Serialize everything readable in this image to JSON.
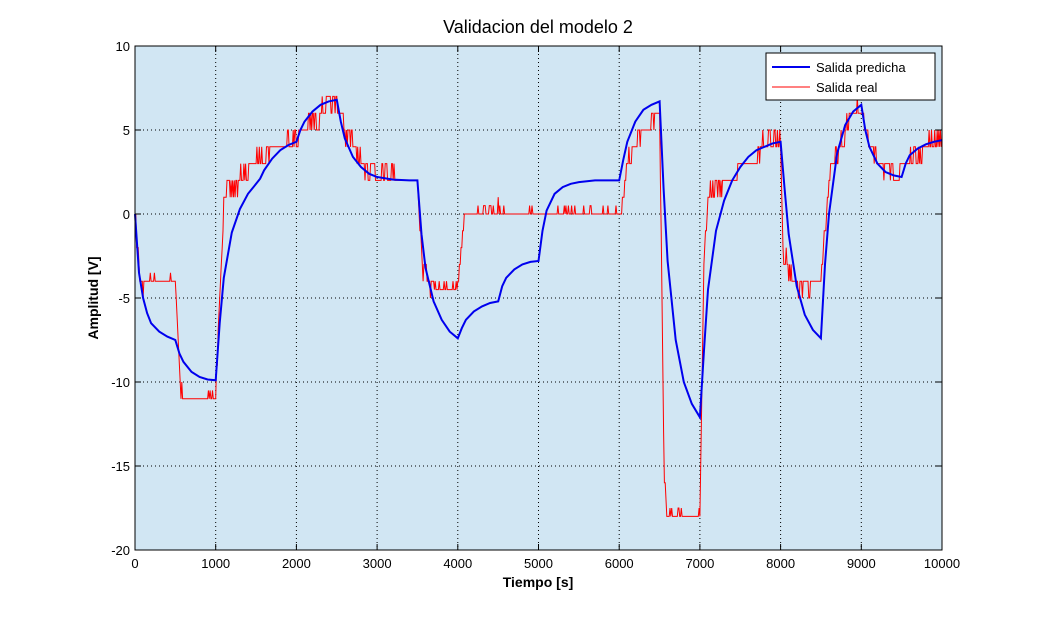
{
  "chart_data": {
    "type": "line",
    "title": "Validacion del modelo 2",
    "xlabel": "Tiempo [s]",
    "ylabel": "Amplitud [V]",
    "xlim": [
      0,
      10000
    ],
    "ylim": [
      -20,
      10
    ],
    "xticks": [
      0,
      1000,
      2000,
      3000,
      4000,
      5000,
      6000,
      7000,
      8000,
      9000,
      10000
    ],
    "yticks": [
      -20,
      -15,
      -10,
      -5,
      0,
      5,
      10
    ],
    "grid": true,
    "legend_position": "top-right",
    "plot_background": "#d1e6f3",
    "series": [
      {
        "name": "Salida predicha",
        "color": "#0000ee",
        "x": [
          0,
          50,
          100,
          150,
          200,
          300,
          400,
          500,
          550,
          600,
          700,
          800,
          900,
          1000,
          1050,
          1100,
          1200,
          1300,
          1400,
          1500,
          1550,
          1600,
          1700,
          1800,
          1900,
          2000,
          2050,
          2100,
          2200,
          2300,
          2400,
          2500,
          2550,
          2600,
          2700,
          2800,
          2900,
          3000,
          3200,
          3400,
          3500,
          3550,
          3600,
          3700,
          3800,
          3900,
          4000,
          4050,
          4100,
          4200,
          4300,
          4400,
          4500,
          4550,
          4600,
          4700,
          4800,
          4900,
          5000,
          5050,
          5100,
          5200,
          5300,
          5400,
          5500,
          5700,
          6000,
          6050,
          6100,
          6200,
          6300,
          6400,
          6500,
          6550,
          6600,
          6700,
          6800,
          6900,
          7000,
          7050,
          7100,
          7200,
          7300,
          7400,
          7500,
          7600,
          7700,
          7800,
          7900,
          8000,
          8050,
          8100,
          8200,
          8300,
          8400,
          8500,
          8550,
          8600,
          8700,
          8800,
          8900,
          9000,
          9050,
          9100,
          9200,
          9300,
          9400,
          9500,
          9550,
          9600,
          9700,
          9800,
          9900,
          10000
        ],
        "y": [
          0,
          -3.5,
          -5.0,
          -5.9,
          -6.5,
          -7.0,
          -7.3,
          -7.5,
          -8.3,
          -8.8,
          -9.4,
          -9.7,
          -9.85,
          -9.9,
          -6.5,
          -3.8,
          -1.1,
          0.3,
          1.2,
          1.8,
          2.1,
          2.6,
          3.3,
          3.8,
          4.1,
          4.3,
          5.0,
          5.5,
          6.1,
          6.5,
          6.7,
          6.8,
          5.5,
          4.5,
          3.4,
          2.8,
          2.4,
          2.2,
          2.05,
          2.0,
          2.0,
          -1.2,
          -3.2,
          -5.2,
          -6.3,
          -7.0,
          -7.4,
          -6.8,
          -6.3,
          -5.8,
          -5.5,
          -5.3,
          -5.2,
          -4.3,
          -3.8,
          -3.3,
          -3.0,
          -2.85,
          -2.8,
          -1.0,
          0.2,
          1.2,
          1.6,
          1.8,
          1.9,
          2.0,
          2.0,
          3.2,
          4.3,
          5.5,
          6.2,
          6.5,
          6.7,
          1.5,
          -2.8,
          -7.5,
          -10.0,
          -11.3,
          -12.1,
          -8.2,
          -4.5,
          -1.0,
          0.8,
          2.0,
          2.8,
          3.4,
          3.8,
          4.0,
          4.2,
          4.3,
          1.5,
          -1.2,
          -4.3,
          -6.0,
          -6.9,
          -7.4,
          -3.0,
          0.0,
          3.6,
          5.3,
          6.1,
          6.5,
          5.0,
          4.0,
          3.0,
          2.5,
          2.3,
          2.2,
          3.0,
          3.5,
          3.9,
          4.15,
          4.3,
          4.4
        ]
      },
      {
        "name": "Salida real",
        "color": "#ff0000",
        "x": [
          0,
          50,
          100,
          150,
          500,
          560,
          600,
          1000,
          1050,
          1100,
          1200,
          1300,
          1400,
          1500,
          1600,
          1700,
          1800,
          1900,
          2000,
          2200,
          2300,
          2500,
          2600,
          2700,
          2800,
          3000,
          3200,
          3400,
          3500,
          3560,
          3700,
          4000,
          4050,
          4100,
          4490,
          4500,
          4510,
          4520,
          6000,
          6050,
          6100,
          6200,
          6300,
          6400,
          6500,
          6560,
          6600,
          7000,
          7050,
          7100,
          7200,
          7300,
          7400,
          7500,
          7600,
          7700,
          7800,
          7900,
          8000,
          8030,
          8100,
          8200,
          8500,
          8600,
          8700,
          8800,
          8900,
          9000,
          9050,
          9100,
          9200,
          9400,
          9500,
          9600,
          9700,
          9800,
          10000
        ],
        "y": [
          0,
          -3,
          -4.5,
          -4,
          -4,
          -10,
          -11,
          -11,
          -5,
          1,
          1.5,
          2,
          2.5,
          3,
          3.5,
          4,
          4,
          4.5,
          4.5,
          5.5,
          6,
          6.5,
          5,
          4,
          3,
          2.5,
          2.5,
          2,
          2,
          -3,
          -4.5,
          -4.5,
          -2,
          0,
          0,
          1,
          0.5,
          0,
          0,
          1,
          3,
          4,
          5,
          5.5,
          6,
          -16,
          -18,
          -18,
          -3,
          1,
          1.5,
          2,
          2,
          2.5,
          3,
          3.5,
          4.5,
          4.5,
          4.5,
          -2,
          -3.5,
          -4.5,
          -4,
          2,
          3.5,
          5,
          6,
          6.5,
          5,
          4,
          3,
          2.5,
          2.5,
          3,
          3.5,
          4,
          4.5
        ]
      }
    ]
  }
}
